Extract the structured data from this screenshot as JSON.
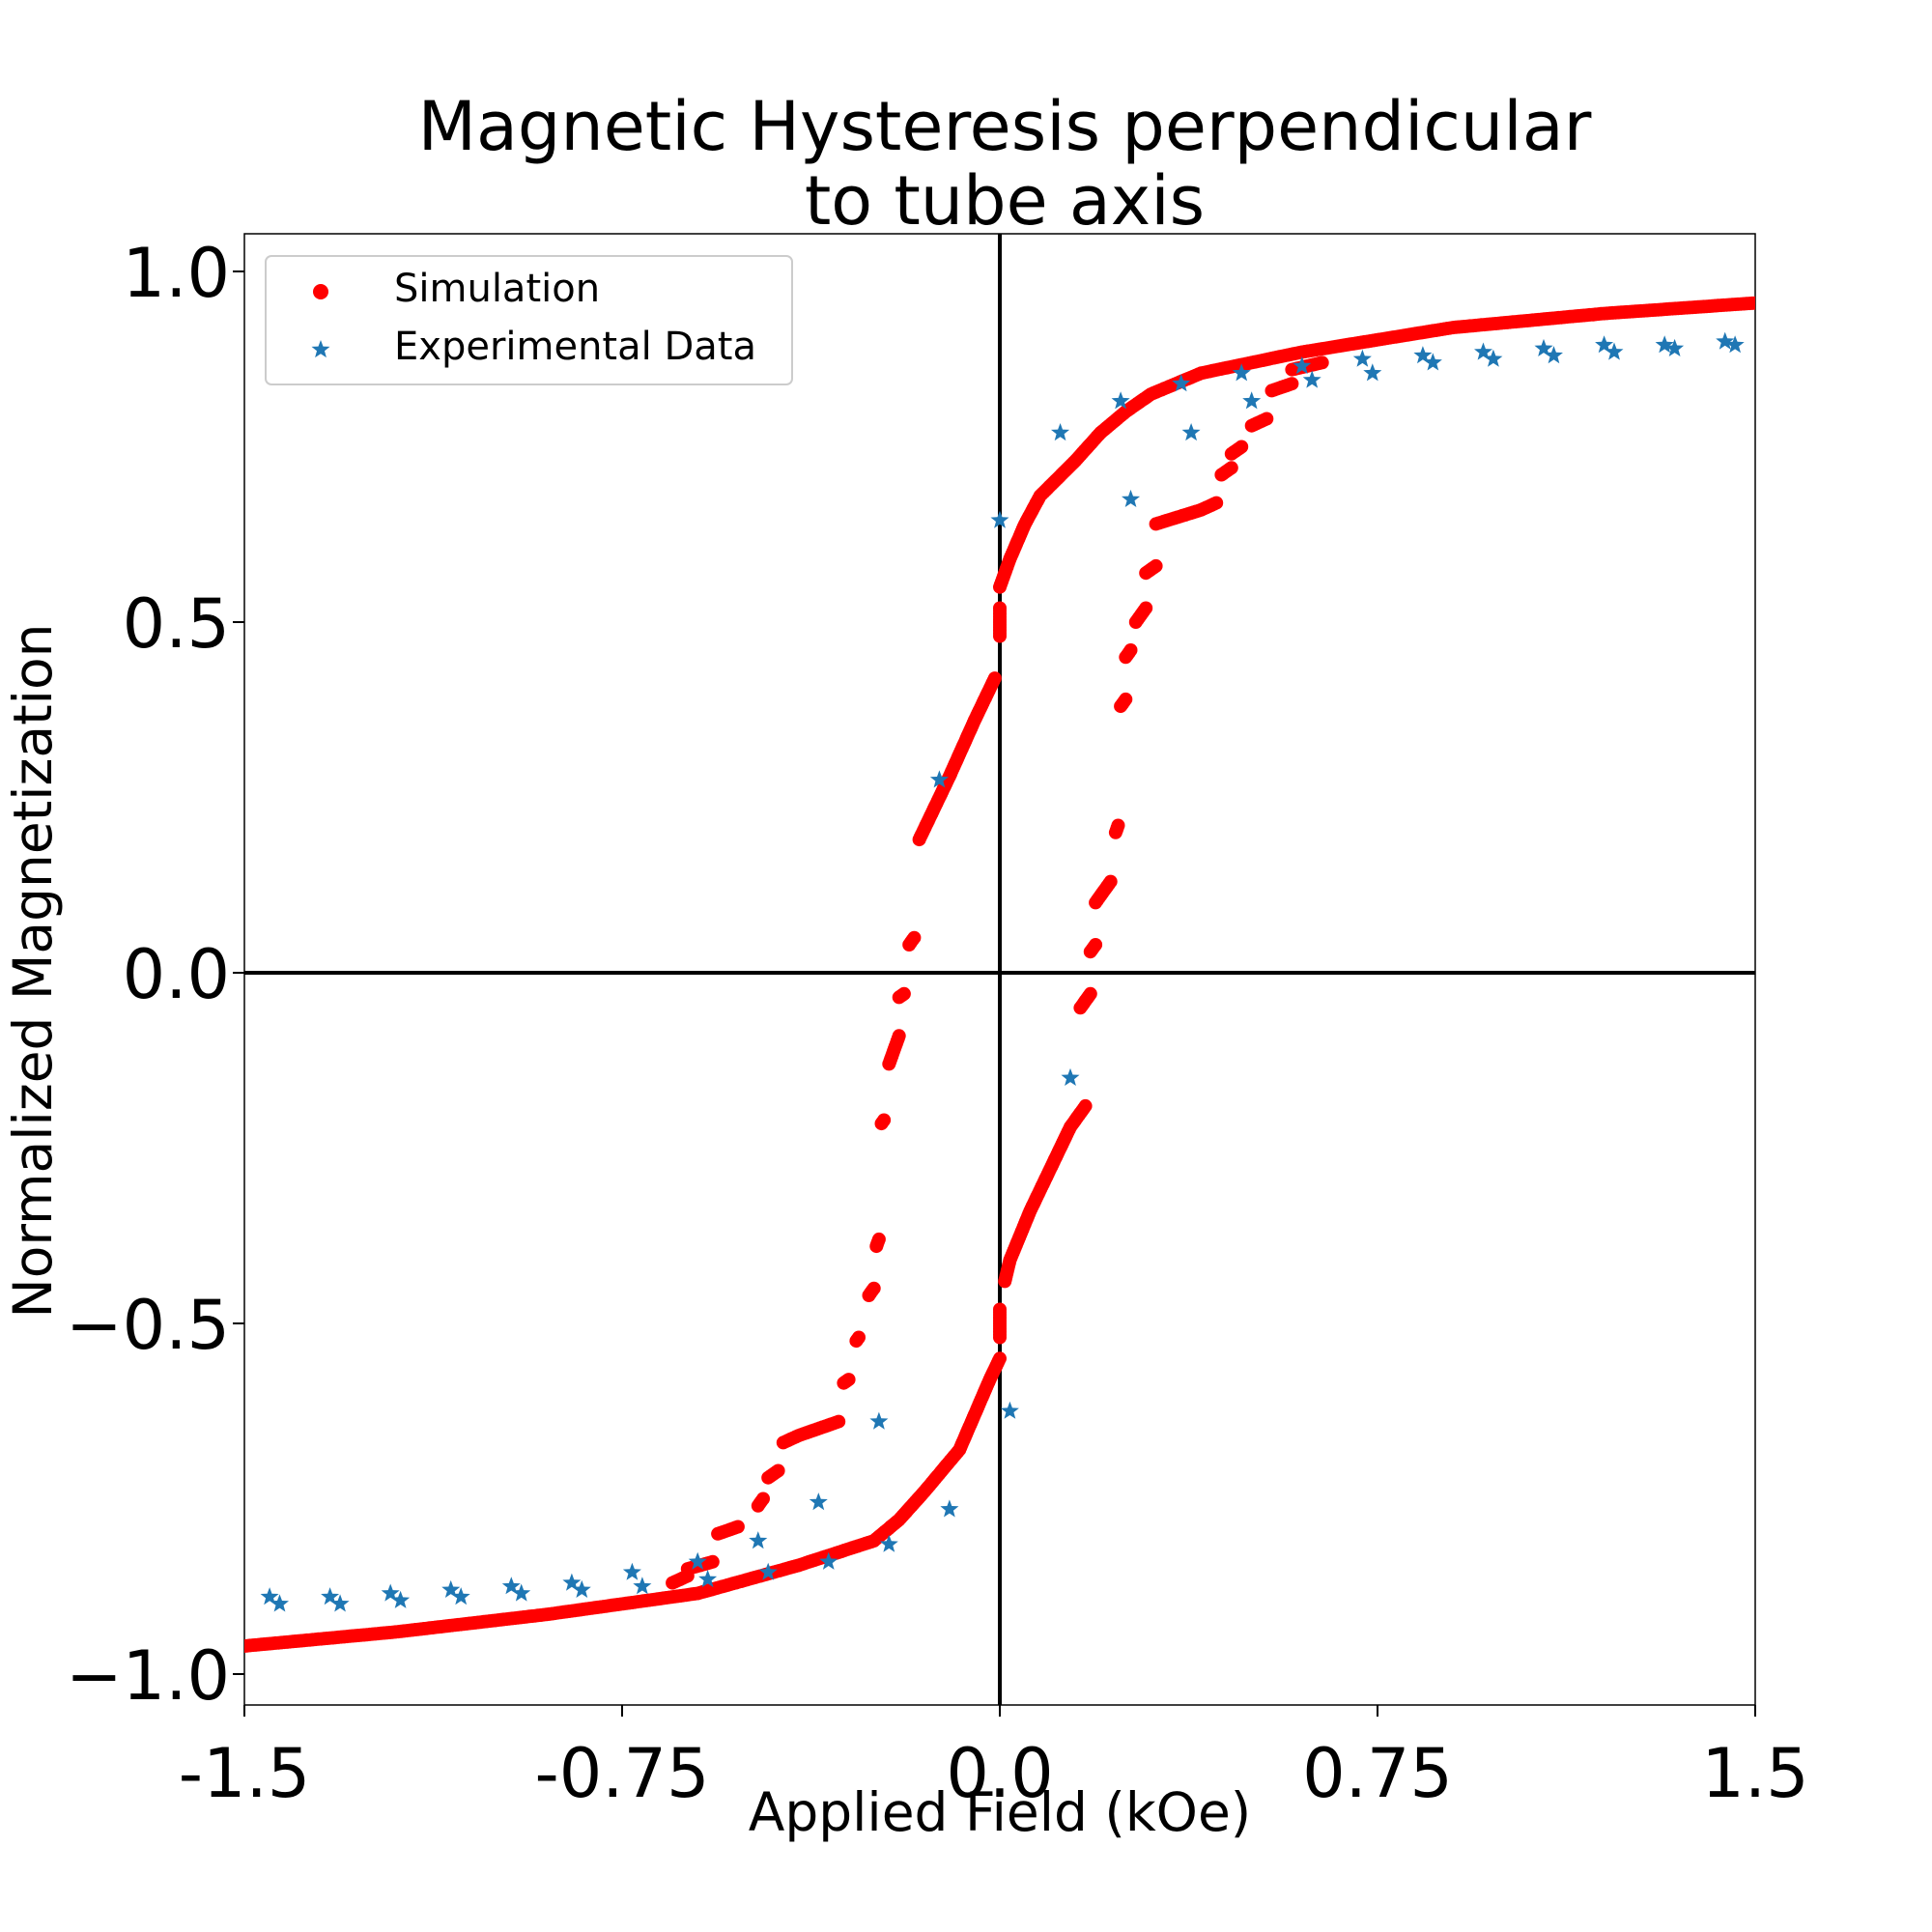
{
  "chart_data": {
    "type": "scatter",
    "title": "Magnetic Hysteresis perpendicular",
    "subtitle": "to tube axis",
    "xlabel": "Applied Field (kOe)",
    "ylabel": "Normalized Magnetization",
    "xlim": [
      -1.5,
      1.5
    ],
    "ylim": [
      -1.05,
      1.05
    ],
    "x_ticks": [
      -1.5,
      -0.75,
      0.0,
      0.75,
      1.5
    ],
    "x_tick_labels": [
      "-1.5",
      "-0.75",
      "0.0",
      "0.75",
      "1.5"
    ],
    "y_ticks": [
      1.0,
      0.5,
      0.0,
      -0.5,
      -1.0
    ],
    "y_tick_labels": [
      "1.0",
      "0.5",
      "0.0",
      "−0.5",
      "−1.0"
    ],
    "grid": false,
    "zero_lines": true,
    "legend_position": "top-left",
    "series": [
      {
        "name": "Simulation",
        "marker": "circle",
        "color": "#ff0000",
        "branches": [
          {
            "label": "descending-continuous",
            "points": [
              [
                1.5,
                0.955
              ],
              [
                1.2,
                0.94
              ],
              [
                0.9,
                0.92
              ],
              [
                0.6,
                0.885
              ],
              [
                0.4,
                0.855
              ],
              [
                0.3,
                0.825
              ],
              [
                0.25,
                0.8
              ],
              [
                0.2,
                0.77
              ],
              [
                0.15,
                0.73
              ],
              [
                0.08,
                0.68
              ],
              [
                0.05,
                0.64
              ],
              [
                0.02,
                0.59
              ],
              [
                0.0,
                0.55
              ]
            ]
          },
          {
            "label": "descending-segments",
            "segments": [
              [
                [
                  0.0,
                  0.52
                ],
                [
                  0.0,
                  0.48
                ]
              ],
              [
                [
                  -0.01,
                  0.42
                ],
                [
                  -0.05,
                  0.36
                ],
                [
                  -0.1,
                  0.28
                ],
                [
                  -0.14,
                  0.22
                ],
                [
                  -0.16,
                  0.19
                ]
              ],
              [
                [
                  -0.17,
                  0.05
                ],
                [
                  -0.18,
                  0.04
                ]
              ],
              [
                [
                  -0.19,
                  -0.03
                ],
                [
                  -0.2,
                  -0.035
                ]
              ],
              [
                [
                  -0.2,
                  -0.09
                ],
                [
                  -0.22,
                  -0.13
                ]
              ],
              [
                [
                  -0.23,
                  -0.21
                ],
                [
                  -0.235,
                  -0.215
                ]
              ],
              [
                [
                  -0.24,
                  -0.38
                ],
                [
                  -0.245,
                  -0.39
                ]
              ],
              [
                [
                  -0.25,
                  -0.45
                ],
                [
                  -0.26,
                  -0.46
                ]
              ],
              [
                [
                  -0.28,
                  -0.52
                ],
                [
                  -0.285,
                  -0.525
                ]
              ],
              [
                [
                  -0.3,
                  -0.58
                ],
                [
                  -0.31,
                  -0.585
                ]
              ],
              [
                [
                  -0.32,
                  -0.64
                ],
                [
                  -0.4,
                  -0.66
                ],
                [
                  -0.43,
                  -0.67
                ]
              ],
              [
                [
                  -0.44,
                  -0.71
                ],
                [
                  -0.46,
                  -0.72
                ]
              ],
              [
                [
                  -0.47,
                  -0.75
                ],
                [
                  -0.48,
                  -0.76
                ]
              ],
              [
                [
                  -0.52,
                  -0.79
                ],
                [
                  -0.56,
                  -0.8
                ]
              ],
              [
                [
                  -0.57,
                  -0.84
                ],
                [
                  -0.62,
                  -0.85
                ]
              ],
              [
                [
                  -0.62,
                  -0.86
                ],
                [
                  -0.65,
                  -0.87
                ]
              ]
            ]
          },
          {
            "label": "ascending-continuous",
            "points": [
              [
                -1.5,
                -0.96
              ],
              [
                -1.2,
                -0.94
              ],
              [
                -0.9,
                -0.915
              ],
              [
                -0.6,
                -0.885
              ],
              [
                -0.4,
                -0.845
              ],
              [
                -0.25,
                -0.81
              ],
              [
                -0.2,
                -0.78
              ],
              [
                -0.15,
                -0.74
              ],
              [
                -0.08,
                -0.68
              ],
              [
                -0.05,
                -0.63
              ],
              [
                -0.02,
                -0.58
              ],
              [
                0.0,
                -0.55
              ]
            ]
          },
          {
            "label": "ascending-segments",
            "segments": [
              [
                [
                  0.0,
                  -0.52
                ],
                [
                  0.0,
                  -0.48
                ]
              ],
              [
                [
                  0.01,
                  -0.44
                ],
                [
                  0.02,
                  -0.41
                ],
                [
                  0.06,
                  -0.34
                ],
                [
                  0.1,
                  -0.28
                ],
                [
                  0.14,
                  -0.22
                ],
                [
                  0.17,
                  -0.19
                ]
              ],
              [
                [
                  0.16,
                  -0.05
                ],
                [
                  0.18,
                  -0.03
                ]
              ],
              [
                [
                  0.18,
                  0.03
                ],
                [
                  0.19,
                  0.04
                ]
              ],
              [
                [
                  0.19,
                  0.1
                ],
                [
                  0.22,
                  0.13
                ]
              ],
              [
                [
                  0.23,
                  0.2
                ],
                [
                  0.235,
                  0.21
                ]
              ],
              [
                [
                  0.24,
                  0.38
                ],
                [
                  0.25,
                  0.39
                ]
              ],
              [
                [
                  0.25,
                  0.45
                ],
                [
                  0.26,
                  0.46
                ]
              ],
              [
                [
                  0.27,
                  0.5
                ],
                [
                  0.29,
                  0.52
                ]
              ],
              [
                [
                  0.29,
                  0.57
                ],
                [
                  0.31,
                  0.58
                ]
              ],
              [
                [
                  0.31,
                  0.64
                ],
                [
                  0.4,
                  0.66
                ],
                [
                  0.43,
                  0.67
                ]
              ],
              [
                [
                  0.44,
                  0.71
                ],
                [
                  0.46,
                  0.72
                ]
              ],
              [
                [
                  0.46,
                  0.74
                ],
                [
                  0.48,
                  0.75
                ]
              ],
              [
                [
                  0.5,
                  0.78
                ],
                [
                  0.53,
                  0.79
                ]
              ],
              [
                [
                  0.54,
                  0.83
                ],
                [
                  0.58,
                  0.84
                ]
              ],
              [
                [
                  0.58,
                  0.86
                ],
                [
                  0.64,
                  0.87
                ]
              ]
            ]
          }
        ]
      },
      {
        "name": "Experimental Data",
        "marker": "star",
        "color": "#1f77b4",
        "points": [
          [
            -1.45,
            -0.89
          ],
          [
            -1.43,
            -0.9
          ],
          [
            -1.33,
            -0.89
          ],
          [
            -1.31,
            -0.9
          ],
          [
            -1.21,
            -0.885
          ],
          [
            -1.19,
            -0.895
          ],
          [
            -1.09,
            -0.88
          ],
          [
            -1.07,
            -0.89
          ],
          [
            -0.97,
            -0.875
          ],
          [
            -0.95,
            -0.885
          ],
          [
            -0.85,
            -0.87
          ],
          [
            -0.83,
            -0.88
          ],
          [
            -0.73,
            -0.855
          ],
          [
            -0.71,
            -0.875
          ],
          [
            -0.6,
            -0.84
          ],
          [
            -0.58,
            -0.865
          ],
          [
            -0.48,
            -0.81
          ],
          [
            -0.46,
            -0.855
          ],
          [
            -0.36,
            -0.755
          ],
          [
            -0.34,
            -0.84
          ],
          [
            -0.24,
            -0.64
          ],
          [
            -0.22,
            -0.815
          ],
          [
            -0.12,
            0.275
          ],
          [
            -0.1,
            -0.765
          ],
          [
            0.0,
            0.645
          ],
          [
            0.02,
            -0.625
          ],
          [
            0.12,
            0.77
          ],
          [
            0.14,
            -0.15
          ],
          [
            0.24,
            0.815
          ],
          [
            0.26,
            0.675
          ],
          [
            0.36,
            0.84
          ],
          [
            0.38,
            0.77
          ],
          [
            0.48,
            0.855
          ],
          [
            0.5,
            0.815
          ],
          [
            0.6,
            0.865
          ],
          [
            0.62,
            0.845
          ],
          [
            0.72,
            0.875
          ],
          [
            0.74,
            0.855
          ],
          [
            0.84,
            0.88
          ],
          [
            0.86,
            0.87
          ],
          [
            0.96,
            0.885
          ],
          [
            0.98,
            0.875
          ],
          [
            1.08,
            0.89
          ],
          [
            1.1,
            0.88
          ],
          [
            1.2,
            0.895
          ],
          [
            1.22,
            0.885
          ],
          [
            1.32,
            0.895
          ],
          [
            1.34,
            0.89
          ],
          [
            1.44,
            0.9
          ],
          [
            1.46,
            0.895
          ]
        ]
      }
    ]
  }
}
